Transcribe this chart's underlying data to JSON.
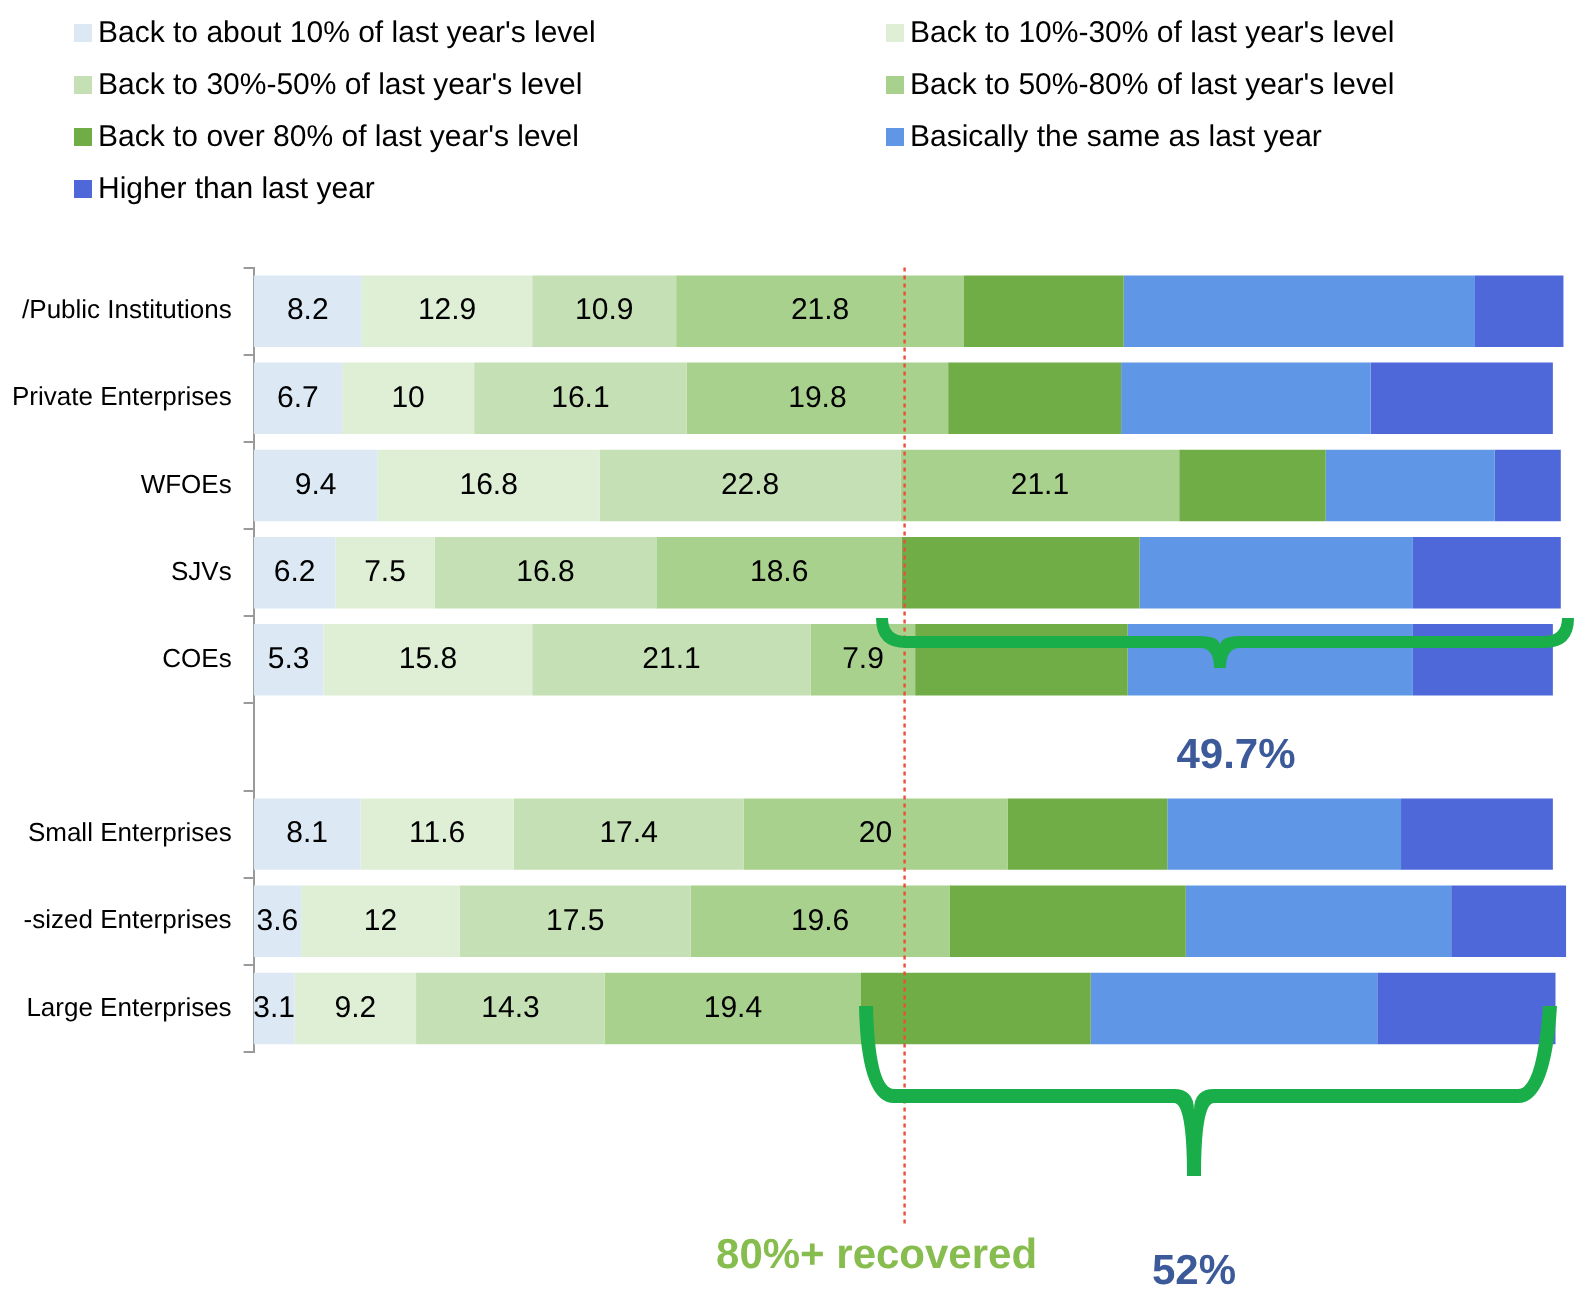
{
  "chart_data": {
    "type": "bar",
    "orientation": "horizontal",
    "stacked": true,
    "categories": [
      "/Public Institutions",
      "Private Enterprises",
      "WFOEs",
      "SJVs",
      "COEs",
      null,
      "Small Enterprises",
      "-sized Enterprises",
      "Large Enterprises"
    ],
    "series": [
      {
        "name": "Back to about 10% of last year's level",
        "color": "#dce9f5",
        "values": [
          8.2,
          6.7,
          9.4,
          6.2,
          5.3,
          null,
          8.1,
          3.6,
          3.1
        ],
        "value_labels": [
          "8.2",
          "6.7",
          "9.4",
          "6.2",
          "5.3",
          null,
          "8.1",
          "3.6",
          "3.1"
        ]
      },
      {
        "name": "Back to 10%-30% of last year's level",
        "color": "#deefd6",
        "values": [
          12.9,
          10,
          16.8,
          7.5,
          15.8,
          null,
          11.6,
          12,
          9.2
        ],
        "value_labels": [
          "12.9",
          "10",
          "16.8",
          "7.5",
          "15.8",
          null,
          "11.6",
          "12",
          "9.2"
        ]
      },
      {
        "name": "Back to 30%-50% of last year's level",
        "color": "#c5e0b4",
        "values": [
          10.9,
          16.1,
          22.8,
          16.8,
          21.1,
          null,
          17.4,
          17.5,
          14.3
        ],
        "value_labels": [
          "10.9",
          "16.1",
          "22.8",
          "16.8",
          "21.1",
          null,
          "17.4",
          "17.5",
          "14.3"
        ]
      },
      {
        "name": "Back to 50%-80% of last year's level",
        "color": "#a9d18e",
        "values": [
          21.8,
          19.8,
          21.1,
          18.6,
          7.9,
          null,
          20,
          19.6,
          19.4
        ],
        "value_labels": [
          "21.8",
          "19.8",
          "21.1",
          "18.6",
          "7.9",
          null,
          "20",
          "19.6",
          "19.4"
        ]
      },
      {
        "name": "Back to over 80% of last year's level",
        "color": "#70ad47",
        "values": [
          12.1,
          13.1,
          11.1,
          18.0,
          16.1,
          null,
          12.1,
          17.9,
          17.4
        ]
      },
      {
        "name": "Basically the same as last year",
        "color": "#5f97e6",
        "values": [
          26.6,
          18.9,
          12.8,
          20.7,
          21.6,
          null,
          17.7,
          20.1,
          21.7
        ]
      },
      {
        "name": "Higher than last year",
        "color": "#4f68d9",
        "values": [
          6.7,
          13.8,
          5.0,
          11.2,
          10.6,
          null,
          11.5,
          8.7,
          13.5
        ]
      }
    ],
    "xlim": [
      0,
      100
    ],
    "tick_labels": "y",
    "grid": false,
    "legend": "top",
    "ref_lines": [
      {
        "axis": "x",
        "value": 49.3,
        "label": "80%+ recovered",
        "color": "#e8503a",
        "line_style": "dotted"
      }
    ],
    "annotations": [
      "49.7%",
      "52%"
    ]
  }
}
